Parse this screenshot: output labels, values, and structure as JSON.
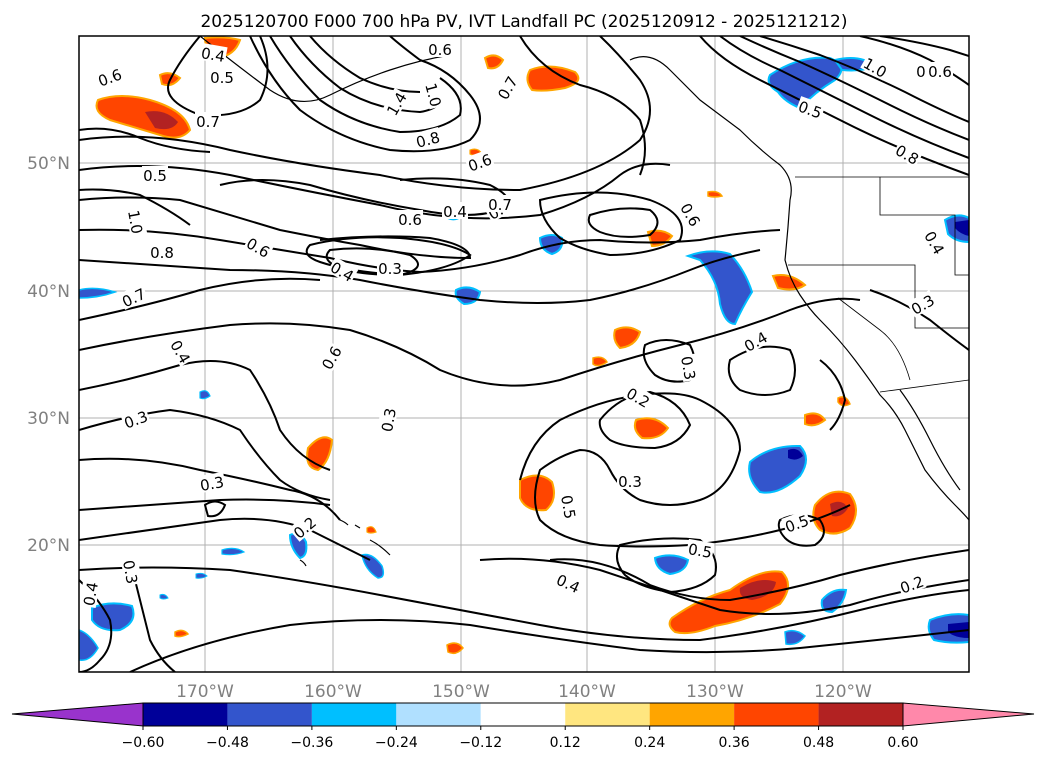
{
  "title": "2025120700 F000 700 hPa PV, IVT Landfall PC (2025120912 - 2025121212)",
  "map": {
    "lon_ticks": [
      "170°W",
      "160°W",
      "150°W",
      "140°W",
      "130°W",
      "120°W"
    ],
    "lat_ticks": [
      "50°N",
      "40°N",
      "30°N",
      "20°N"
    ],
    "gridlines": true
  },
  "contour_labels": [
    "0.4",
    "0.5",
    "0.6",
    "0.7",
    "1.4",
    "1.0",
    "0.8",
    "0.6",
    "0.7",
    "0.5",
    "0.7",
    "0.4",
    "0.5",
    "1.0",
    "0.6",
    "0.8",
    "0.8",
    "1.0",
    "0.6",
    "0.5",
    "0.7",
    "0.6",
    "0.6",
    "0.4",
    "0.3",
    "0.6",
    "0.4",
    "0.7",
    "0.6",
    "0.4",
    "0.3",
    "0.4",
    "0.3",
    "0.2",
    "0.3",
    "0.3",
    "0.5",
    "0.3",
    "0.3",
    "0.2",
    "0.5",
    "0.5",
    "0.4",
    "0.2",
    "0.4",
    "0.3"
  ],
  "colorbar": {
    "levels": [
      "−0.60",
      "−0.48",
      "−0.36",
      "−0.24",
      "−0.12",
      "0.12",
      "0.24",
      "0.36",
      "0.48",
      "0.60"
    ],
    "colors": [
      "#9933cc",
      "#000099",
      "#3355cc",
      "#00bfff",
      "#b0e0ff",
      "#ffffff",
      "#ffe680",
      "#ffa500",
      "#ff4500",
      "#b22222",
      "#ff88aa"
    ]
  }
}
